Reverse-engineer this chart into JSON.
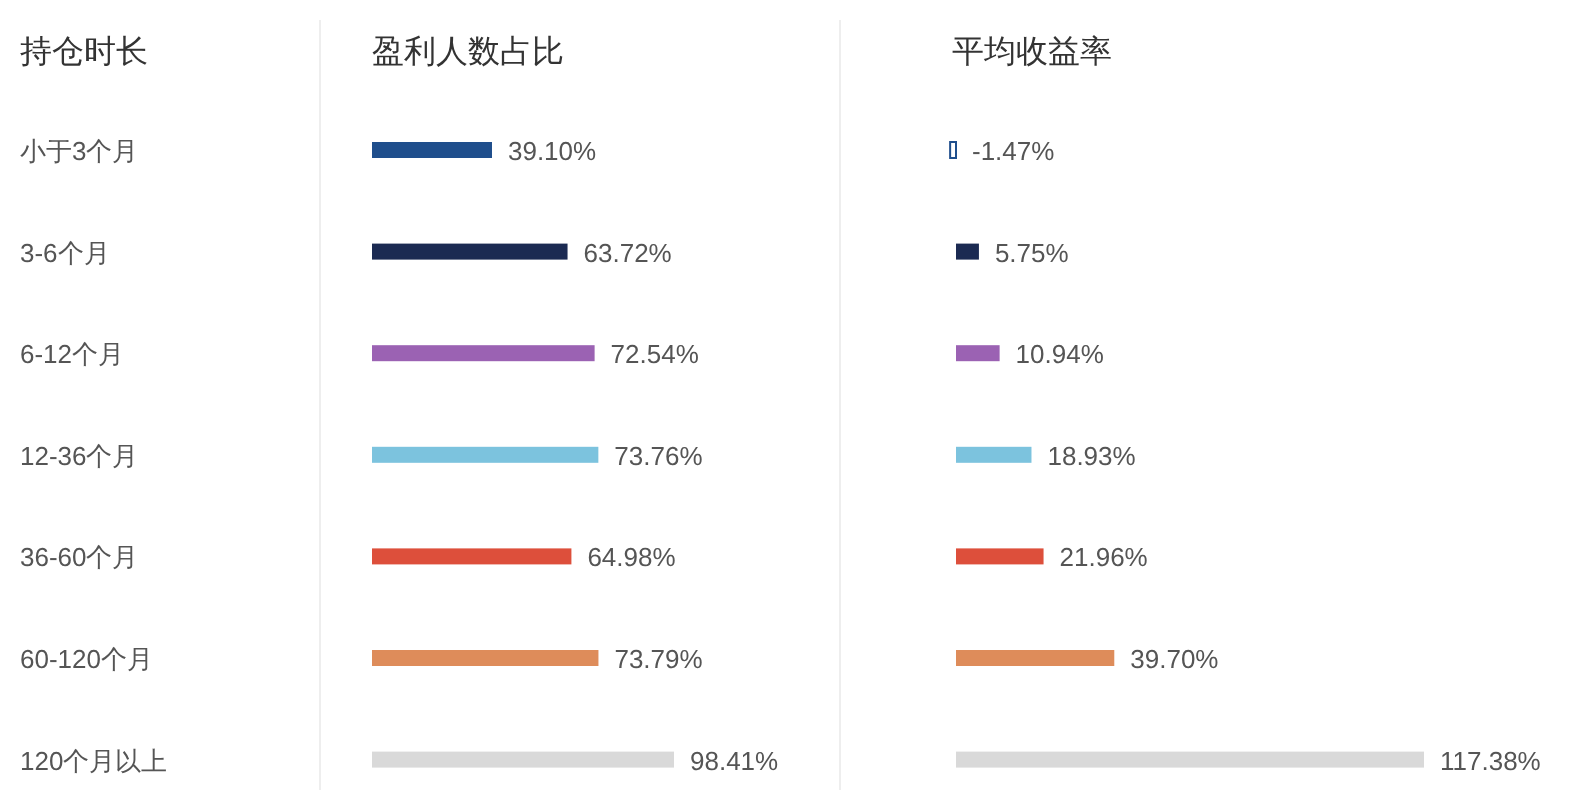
{
  "chart_data": [
    {
      "type": "bar",
      "orientation": "horizontal",
      "ylabel": "持仓时长",
      "title": "盈利人数占比",
      "data_labels": true,
      "categories": [
        "小于3个月",
        "3-6个月",
        "6-12个月",
        "12-36个月",
        "36-60个月",
        "60-120个月",
        "120个月以上"
      ],
      "values": [
        39.1,
        63.72,
        72.54,
        73.76,
        64.98,
        73.79,
        98.41
      ],
      "value_labels": [
        "39.10%",
        "63.72%",
        "72.54%",
        "73.76%",
        "64.98%",
        "73.79%",
        "98.41%"
      ],
      "colors": [
        "#1f4e8c",
        "#1b2a52",
        "#9b62b3",
        "#7cc3de",
        "#dd4f3b",
        "#de8c5a",
        "#d9d9d9"
      ]
    },
    {
      "type": "bar",
      "orientation": "horizontal",
      "title": "平均收益率",
      "data_labels": true,
      "categories": [
        null,
        null,
        null,
        null,
        null,
        null,
        null
      ],
      "values": [
        -1.47,
        5.75,
        10.94,
        18.93,
        21.96,
        39.7,
        117.38
      ],
      "value_labels": [
        "-1.47%",
        "5.75%",
        "10.94%",
        "18.93%",
        "21.96%",
        "39.70%",
        "117.38%"
      ],
      "colors": [
        "#1f4e8c",
        "#1b2a52",
        "#9b62b3",
        "#7cc3de",
        "#dd4f3b",
        "#de8c5a",
        "#d9d9d9"
      ]
    }
  ]
}
